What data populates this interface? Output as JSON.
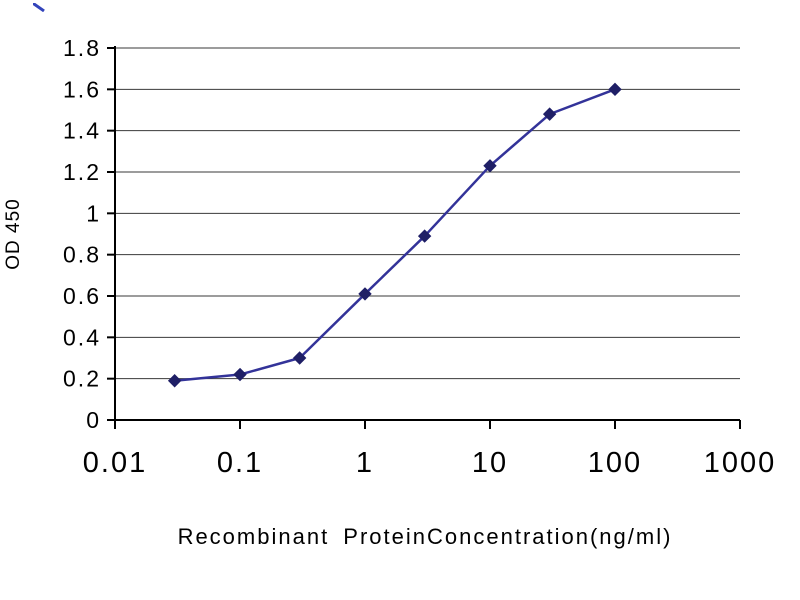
{
  "chart_data": {
    "type": "line",
    "title": "",
    "xlabel": "Recombinant ProteinConcentration(ng/ml)",
    "ylabel": "OD 450",
    "x_scale": "log",
    "xlim": [
      0.01,
      1000
    ],
    "ylim": [
      0,
      1.8
    ],
    "x": [
      0.03,
      0.1,
      0.3,
      1,
      3,
      10,
      30,
      100
    ],
    "y": [
      0.19,
      0.22,
      0.3,
      0.61,
      0.89,
      1.23,
      1.48,
      1.6
    ],
    "x_ticks": [
      0.01,
      0.1,
      1,
      10,
      100,
      1000
    ],
    "x_tick_labels": [
      "0.01",
      "0.1",
      "1",
      "10",
      "100",
      "1000"
    ],
    "y_ticks": [
      0,
      0.2,
      0.4,
      0.6,
      0.8,
      1,
      1.2,
      1.4,
      1.6,
      1.8
    ],
    "y_tick_labels": [
      "0",
      "0.2",
      "0.4",
      "0.6",
      "0.8",
      "1",
      "1.2",
      "1.4",
      "1.6",
      "1.8"
    ],
    "grid": "horizontal",
    "legend": "none",
    "marker": "diamond",
    "colors": {
      "line": "#333399",
      "marker": "#1f1f66",
      "grid": "#3a3a3a",
      "axis": "#000000",
      "text": "#000000",
      "background": "#ffffff"
    }
  }
}
